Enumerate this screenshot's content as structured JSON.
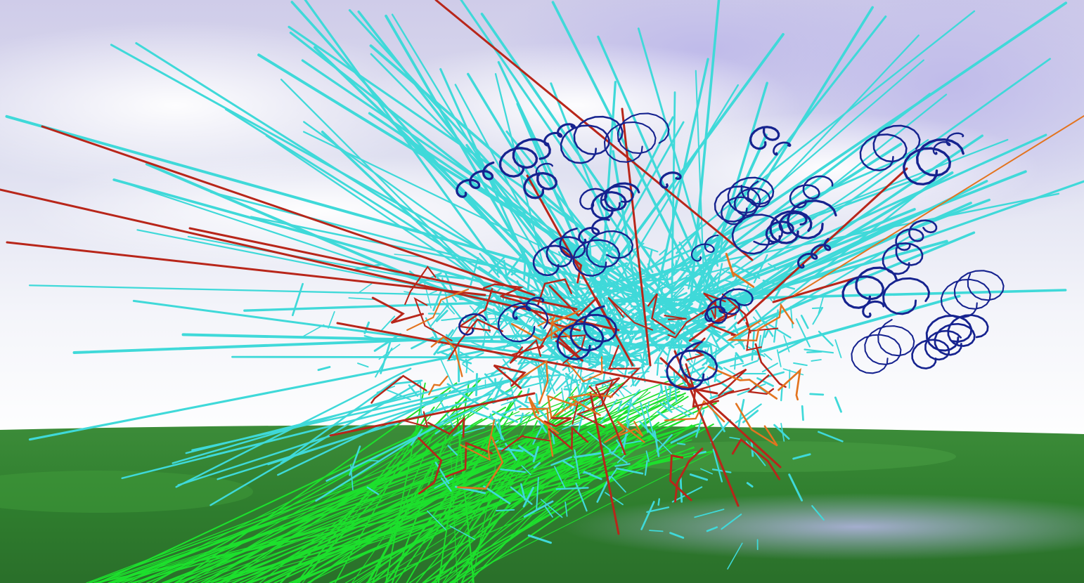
{
  "scene": {
    "description_hidden": "",
    "palette": {
      "sky_top": "#c9c6ea",
      "sky_mid": "#e6e7f2",
      "sky_horizon": "#ffffff",
      "ground_near": "#2f7f2f",
      "ground_far": "#3d8f3a",
      "ground_fog": "#9aa0c8",
      "track_cyan": "#3fd9d9",
      "track_red": "#b8261a",
      "track_orange": "#e3741f",
      "track_navy": "#16238f",
      "track_green": "#1de02d"
    },
    "legend_visible": false
  }
}
